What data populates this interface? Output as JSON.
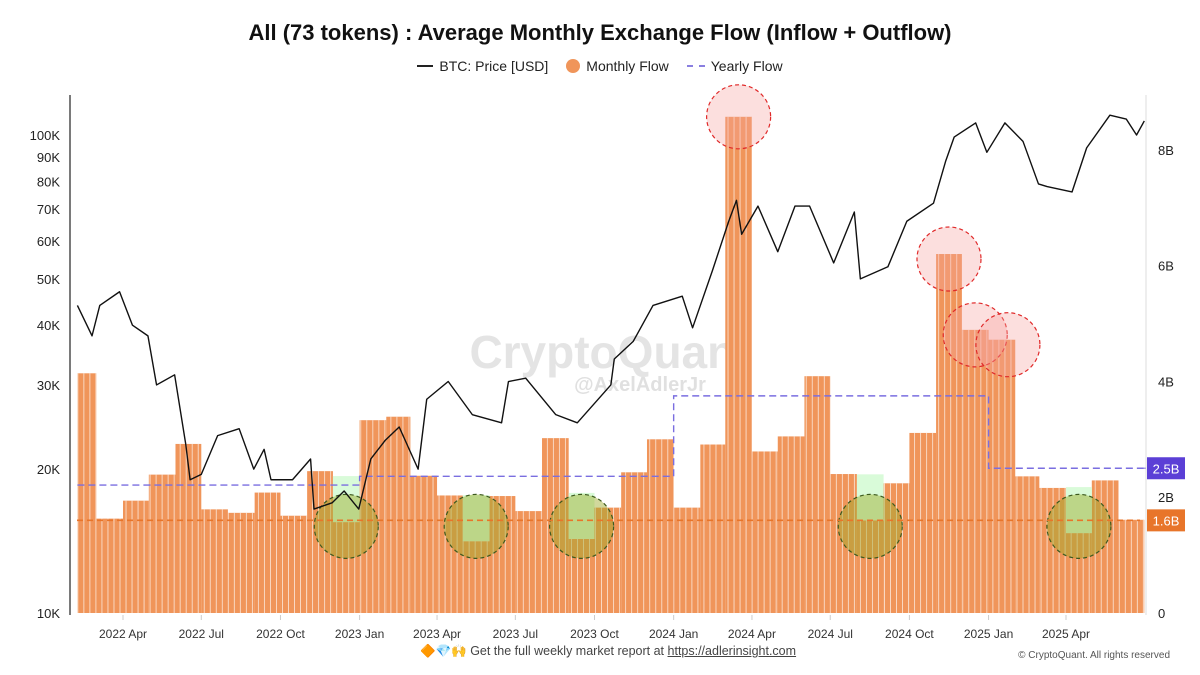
{
  "title": "All (73 tokens) : Average Monthly Exchange Flow (Inflow + Outflow)",
  "legend": [
    {
      "label": "BTC: Price [USD]",
      "color": "#111111",
      "style": "line"
    },
    {
      "label": "Monthly Flow",
      "color": "#f0955a",
      "style": "dot"
    },
    {
      "label": "Yearly Flow",
      "color": "#8a7fe0",
      "style": "dash"
    }
  ],
  "watermark": {
    "brand": "CryptoQuant",
    "handle": "@AxelAdlerJr"
  },
  "footer": {
    "emoji": "🔶💎🙌",
    "text": "Get the full weekly market report at",
    "link": "https://adlerinsight.com",
    "copyright": "© CryptoQuant. All rights reserved"
  },
  "chart_data": {
    "type": "bar",
    "title": "All (73 tokens) : Average Monthly Exchange Flow (Inflow + Outflow)",
    "x_ticks": [
      "2022 Apr",
      "2022 Jul",
      "2022 Oct",
      "2023 Jan",
      "2023 Apr",
      "2023 Jul",
      "2023 Oct",
      "2024 Jan",
      "2024 Apr",
      "2024 Jul",
      "2024 Oct",
      "2025 Jan",
      "2025 Apr"
    ],
    "x_tick_dates": [
      "2022-04-01",
      "2022-07-01",
      "2022-10-01",
      "2023-01-01",
      "2023-04-01",
      "2023-07-01",
      "2023-10-01",
      "2024-01-01",
      "2024-04-01",
      "2024-07-01",
      "2024-10-01",
      "2025-01-01",
      "2025-04-01"
    ],
    "left_axis": {
      "scale": "log",
      "unit": "USD",
      "range": [
        10000,
        125000
      ],
      "ticks": [
        "10K",
        "20K",
        "30K",
        "40K",
        "50K",
        "60K",
        "70K",
        "80K",
        "90K",
        "100K"
      ],
      "tick_values": [
        10000,
        20000,
        30000,
        40000,
        50000,
        60000,
        70000,
        80000,
        90000,
        100000
      ]
    },
    "right_axis": {
      "scale": "linear",
      "unit": "USD",
      "range": [
        0,
        8.9
      ],
      "ticks": [
        "0",
        "2B",
        "4B",
        "6B",
        "8B"
      ],
      "tick_values": [
        0,
        2,
        4,
        6,
        8
      ]
    },
    "grid": false,
    "legend_placement": "top-center",
    "monthly_flow_billions": {
      "months": [
        "2022-02",
        "2022-03",
        "2022-04",
        "2022-05",
        "2022-06",
        "2022-07",
        "2022-08",
        "2022-09",
        "2022-10",
        "2022-11",
        "2022-12",
        "2023-01",
        "2023-02",
        "2023-03",
        "2023-04",
        "2023-05",
        "2023-06",
        "2023-07",
        "2023-08",
        "2023-09",
        "2023-10",
        "2023-11",
        "2023-12",
        "2024-01",
        "2024-02",
        "2024-03",
        "2024-04",
        "2024-05",
        "2024-06",
        "2024-07",
        "2024-08",
        "2024-09",
        "2024-10",
        "2024-11",
        "2024-12",
        "2025-01",
        "2025-02",
        "2025-03",
        "2025-04",
        "2025-05",
        "2025-06"
      ],
      "values": [
        4.14,
        1.63,
        1.94,
        2.39,
        2.92,
        1.79,
        1.73,
        2.08,
        1.68,
        2.45,
        1.57,
        3.33,
        3.39,
        2.37,
        2.03,
        1.24,
        2.02,
        1.76,
        3.02,
        1.28,
        1.82,
        2.43,
        3.0,
        1.82,
        2.91,
        8.57,
        2.79,
        3.05,
        4.09,
        2.4,
        1.6,
        2.24,
        3.11,
        6.2,
        4.89,
        4.72,
        2.36,
        2.16,
        1.38,
        2.29,
        1.61
      ]
    },
    "yearly_flow_billions": [
      {
        "year": "2022",
        "value": 2.21
      },
      {
        "year": "2023",
        "value": 2.36
      },
      {
        "year": "2024",
        "value": 3.75
      },
      {
        "year": "2025",
        "value": 2.5
      }
    ],
    "reference_lines": [
      {
        "label": "2.5B",
        "value": 2.5,
        "color": "#5b3fd6"
      },
      {
        "label": "1.6B",
        "value": 1.6,
        "color": "#e8752a"
      }
    ],
    "highlight_high_months": [
      "2024-03",
      "2024-11",
      "2024-12",
      "2025-01"
    ],
    "highlight_low_months": [
      "2022-12",
      "2023-05",
      "2023-09",
      "2024-08",
      "2025-04"
    ],
    "btc_price": {
      "dates": [
        "2022-02-07",
        "2022-02-24",
        "2022-03-05",
        "2022-03-28",
        "2022-04-12",
        "2022-04-30",
        "2022-05-10",
        "2022-05-31",
        "2022-06-13",
        "2022-06-18",
        "2022-07-01",
        "2022-07-20",
        "2022-08-14",
        "2022-08-31",
        "2022-09-12",
        "2022-09-20",
        "2022-10-15",
        "2022-11-05",
        "2022-11-09",
        "2022-11-30",
        "2022-12-14",
        "2022-12-31",
        "2023-01-14",
        "2023-01-31",
        "2023-02-16",
        "2023-03-10",
        "2023-03-20",
        "2023-04-14",
        "2023-05-12",
        "2023-06-15",
        "2023-06-23",
        "2023-07-13",
        "2023-08-17",
        "2023-09-11",
        "2023-10-20",
        "2023-10-24",
        "2023-11-15",
        "2023-12-08",
        "2024-01-11",
        "2024-01-23",
        "2024-02-15",
        "2024-03-05",
        "2024-03-14",
        "2024-03-20",
        "2024-04-08",
        "2024-05-01",
        "2024-05-21",
        "2024-06-07",
        "2024-07-05",
        "2024-07-29",
        "2024-08-05",
        "2024-09-06",
        "2024-09-28",
        "2024-10-29",
        "2024-11-12",
        "2024-11-22",
        "2024-12-17",
        "2024-12-30",
        "2025-01-20",
        "2025-02-10",
        "2025-02-28",
        "2025-03-10",
        "2025-04-08",
        "2025-04-25",
        "2025-05-22",
        "2025-06-10",
        "2025-06-22",
        "2025-07-01"
      ],
      "values": [
        44000,
        38000,
        44000,
        47000,
        40000,
        38000,
        30000,
        31500,
        22500,
        19000,
        19500,
        23500,
        24300,
        20000,
        22000,
        19000,
        19000,
        21000,
        16500,
        17000,
        18000,
        16500,
        21000,
        23000,
        24500,
        20000,
        28000,
        30500,
        26000,
        25000,
        30500,
        31000,
        26000,
        25000,
        30000,
        34000,
        37000,
        44000,
        46000,
        39500,
        52000,
        66000,
        73000,
        62000,
        71000,
        57000,
        71000,
        71000,
        54000,
        69000,
        50000,
        53000,
        66000,
        72000,
        88000,
        99000,
        106000,
        92000,
        106000,
        97000,
        79000,
        78000,
        76000,
        94000,
        110000,
        108000,
        100000,
        107000
      ]
    }
  }
}
